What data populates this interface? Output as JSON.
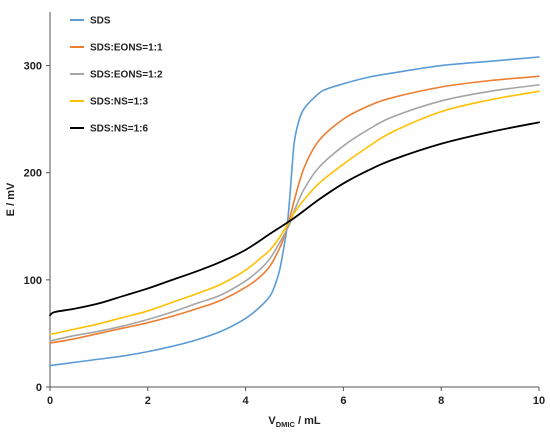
{
  "chart_data": {
    "type": "line",
    "title": "",
    "xlabel": {
      "main": "V",
      "sub": "DMIC",
      "unit": " / mL"
    },
    "ylabel": "E / mV",
    "xlim": [
      0,
      10
    ],
    "ylim": [
      0,
      350
    ],
    "x_ticks": [
      "0",
      "2",
      "4",
      "6",
      "8",
      "10"
    ],
    "y_ticks": [
      "0",
      "100",
      "200",
      "300"
    ],
    "grid": false,
    "legend_position": "top-left",
    "series": [
      {
        "name": "SDS",
        "color": "#5B9BD5",
        "x": [
          0,
          0.5,
          1,
          1.5,
          2,
          2.5,
          3,
          3.5,
          4,
          4.3,
          4.5,
          4.6,
          4.7,
          4.8,
          4.85,
          4.9,
          4.95,
          5,
          5.1,
          5.2,
          5.4,
          5.6,
          6,
          6.5,
          7,
          8,
          9,
          10
        ],
        "y": [
          20,
          23,
          26,
          29,
          33,
          38,
          44,
          52,
          64,
          75,
          85,
          95,
          110,
          135,
          150,
          175,
          205,
          230,
          250,
          260,
          270,
          277,
          283,
          289,
          293,
          300,
          304,
          308
        ]
      },
      {
        "name": "SDS:EONS=1:1",
        "color": "#ED7D31",
        "x": [
          0,
          0.5,
          1,
          1.5,
          2,
          2.5,
          3,
          3.5,
          4,
          4.3,
          4.5,
          4.7,
          4.8,
          4.9,
          5,
          5.2,
          5.5,
          6,
          6.5,
          7,
          8,
          9,
          10
        ],
        "y": [
          41,
          45,
          50,
          55,
          60,
          66,
          73,
          81,
          93,
          103,
          113,
          130,
          142,
          157,
          175,
          205,
          230,
          250,
          262,
          270,
          280,
          286,
          290
        ]
      },
      {
        "name": "SDS:EONS=1:2",
        "color": "#A5A5A5",
        "x": [
          0,
          0.5,
          1,
          1.5,
          2,
          2.5,
          3,
          3.5,
          4,
          4.3,
          4.5,
          4.7,
          4.9,
          5,
          5.2,
          5.5,
          6,
          6.5,
          7,
          8,
          9,
          10
        ],
        "y": [
          43,
          48,
          52,
          57,
          63,
          70,
          78,
          86,
          99,
          110,
          120,
          135,
          152,
          165,
          185,
          205,
          225,
          240,
          252,
          267,
          276,
          282
        ]
      },
      {
        "name": "SDS:NS=1:3",
        "color": "#FFC000",
        "x": [
          0,
          0.5,
          1,
          1.5,
          2,
          2.5,
          3,
          3.5,
          4,
          4.3,
          4.5,
          4.7,
          4.9,
          5,
          5.2,
          5.5,
          6,
          6.5,
          7,
          8,
          9,
          10
        ],
        "y": [
          49,
          54,
          59,
          65,
          71,
          79,
          87,
          96,
          109,
          120,
          128,
          140,
          155,
          163,
          175,
          190,
          208,
          224,
          238,
          257,
          268,
          276
        ]
      },
      {
        "name": "SDS:NS=1:6",
        "color": "#000000",
        "x": [
          0,
          0.1,
          0.5,
          1,
          1.5,
          2,
          2.5,
          3,
          3.5,
          4,
          4.5,
          5,
          5.5,
          6,
          6.5,
          7,
          8,
          9,
          10
        ],
        "y": [
          67,
          70,
          73,
          78,
          85,
          92,
          100,
          108,
          117,
          128,
          143,
          158,
          175,
          190,
          202,
          212,
          227,
          238,
          247
        ]
      }
    ]
  }
}
